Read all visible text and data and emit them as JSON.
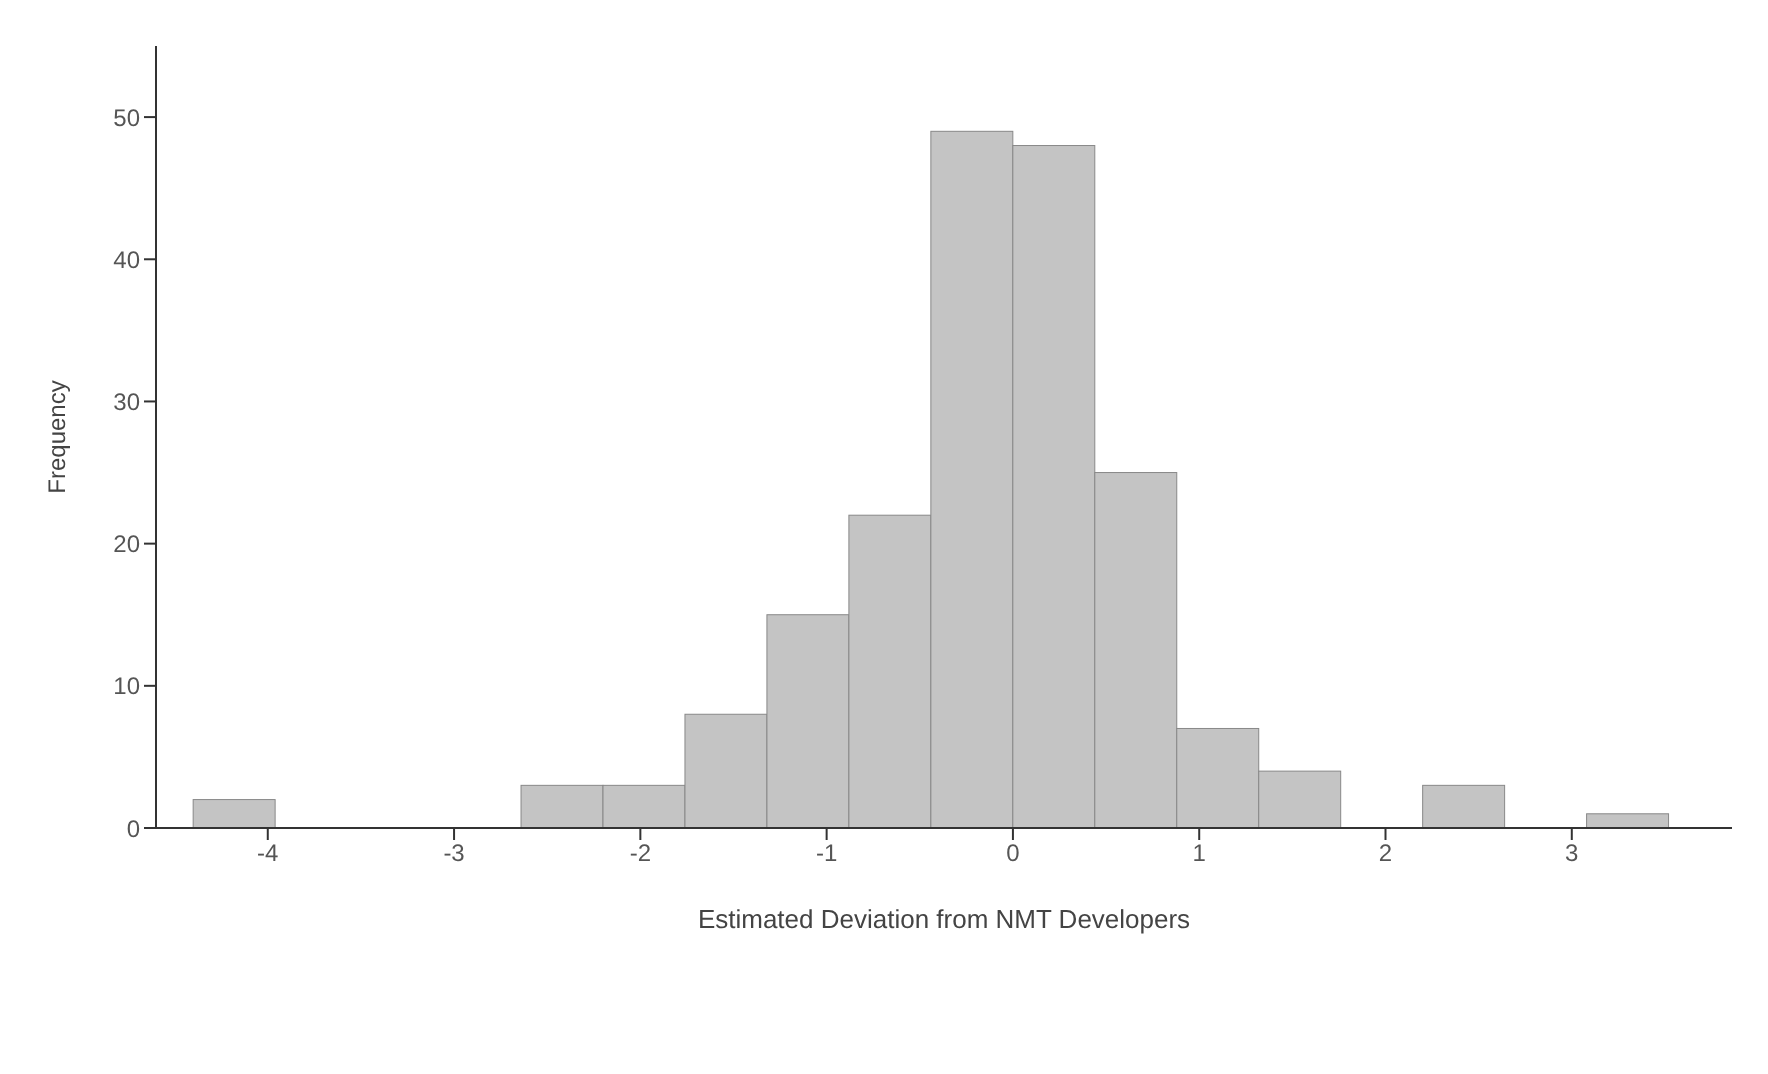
{
  "chart_data": {
    "type": "histogram",
    "xlabel": "Estimated Deviation from NMT Developers",
    "ylabel": "Frequency",
    "bins": [
      -4.4,
      -3.96,
      -3.52,
      -3.08,
      -2.64,
      -2.2,
      -1.76,
      -1.32,
      -0.88,
      -0.44,
      0,
      0.44,
      0.88,
      1.32,
      1.76,
      2.2,
      2.64,
      3.08,
      3.52
    ],
    "values": [
      2,
      0,
      0,
      0,
      3,
      3,
      8,
      15,
      22,
      49,
      48,
      25,
      7,
      4,
      0,
      3,
      0,
      1
    ],
    "color": "#c4c4c4",
    "xlim": [
      -4.6,
      3.86
    ],
    "xticks": [
      -4,
      -3,
      -2,
      -1,
      0,
      1,
      2,
      3
    ],
    "ylim": [
      0,
      55
    ],
    "yticks": [
      0,
      10,
      20,
      30,
      40,
      50
    ]
  }
}
